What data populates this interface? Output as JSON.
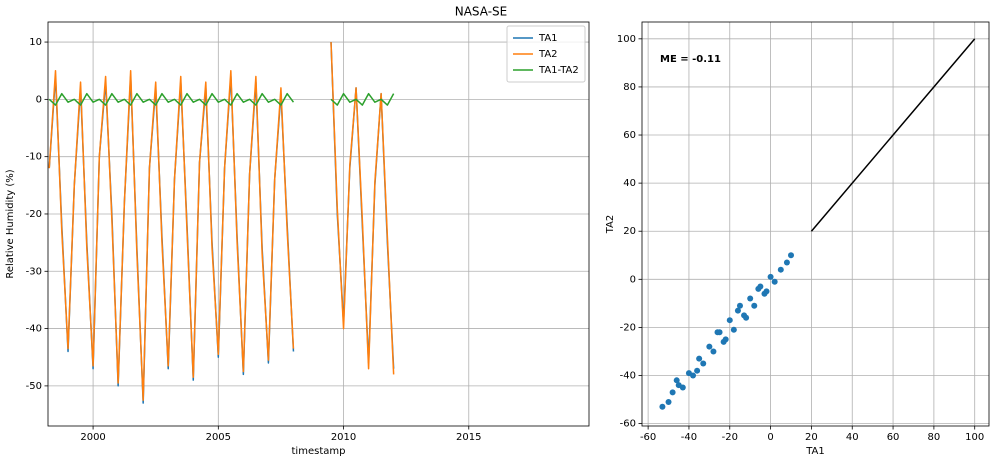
{
  "title": "NASA-SE",
  "chart_data": [
    {
      "type": "line",
      "xlabel": "timestamp",
      "ylabel": "Relative Humidity (%)",
      "xlim": [
        1998.2,
        2019.8
      ],
      "xticks": [
        2000,
        2005,
        2010,
        2015
      ],
      "ylim": [
        -57,
        13.5
      ],
      "yticks": [
        -50,
        -40,
        -30,
        -20,
        -10,
        0,
        10
      ],
      "grid": true,
      "legend": "upper right",
      "x": [
        1998.25,
        1998.5,
        1998.75,
        1999,
        1999.25,
        1999.5,
        1999.75,
        2000,
        2000.25,
        2000.5,
        2000.75,
        2001,
        2001.25,
        2001.5,
        2001.75,
        2002,
        2002.25,
        2002.5,
        2002.75,
        2003,
        2003.25,
        2003.5,
        2003.75,
        2004,
        2004.25,
        2004.5,
        2004.75,
        2005,
        2005.25,
        2005.5,
        2005.75,
        2006,
        2006.25,
        2006.5,
        2006.75,
        2007,
        2007.25,
        2007.5,
        2007.75,
        2008,
        2008.75,
        2009.5,
        2009.75,
        2010,
        2010.25,
        2010.5,
        2010.75,
        2011,
        2011.25,
        2011.5,
        2011.75,
        2012
      ],
      "series": [
        {
          "name": "TA1",
          "color": "#1f77b4",
          "values": [
            -12,
            4,
            -22,
            -44,
            -15,
            2,
            -25,
            -47,
            -10,
            3,
            -20,
            -50,
            -18,
            4,
            -26,
            -53,
            -12,
            2,
            -24,
            -47,
            -14,
            3,
            -22,
            -49,
            -11,
            2,
            -25,
            -45,
            -12,
            4,
            -24,
            -48,
            -13,
            3,
            -26,
            -46,
            -14,
            1,
            -22,
            -44,
            null,
            10,
            -20,
            -39,
            -12,
            2,
            -22,
            -46,
            -15,
            1,
            -25,
            -47
          ]
        },
        {
          "name": "TA2",
          "color": "#ff7f0e",
          "values": [
            -12,
            5,
            -23,
            -43.5,
            -15,
            3,
            -26,
            -46.5,
            -10,
            4,
            -21,
            -49.5,
            -18,
            5,
            -27,
            -52.5,
            -12,
            3,
            -25,
            -46.5,
            -14,
            4,
            -23,
            -48.5,
            -11,
            3,
            -26,
            -44.5,
            -12,
            5,
            -25,
            -47.5,
            -13,
            4,
            -27,
            -45.5,
            -14,
            2,
            -23,
            -43.5,
            null,
            10,
            -19,
            -40,
            -11.5,
            2,
            -21,
            -47,
            -14.5,
            1,
            -24,
            -48
          ]
        },
        {
          "name": "TA1-TA2",
          "color": "#2ca02c",
          "values": [
            0,
            -1,
            1,
            -0.5,
            0,
            -1,
            1,
            -0.5,
            0,
            -1,
            1,
            -0.5,
            0,
            -1,
            1,
            -0.5,
            0,
            -1,
            1,
            -0.5,
            0,
            -1,
            1,
            -0.5,
            0,
            -1,
            1,
            -0.5,
            0,
            -1,
            1,
            -0.5,
            0,
            -1,
            1,
            -0.5,
            0,
            -1,
            1,
            -0.5,
            null,
            0,
            -1,
            1,
            -0.5,
            0,
            -1,
            1,
            -0.5,
            0,
            -1,
            1
          ]
        }
      ]
    },
    {
      "type": "scatter",
      "xlabel": "TA1",
      "ylabel": "TA2",
      "annotation": "ME = -0.11",
      "xlim": [
        -63,
        107
      ],
      "xticks": [
        -60,
        -40,
        -20,
        0,
        20,
        40,
        60,
        80,
        100
      ],
      "ylim": [
        -61,
        107
      ],
      "yticks": [
        -60,
        -40,
        -20,
        0,
        20,
        40,
        60,
        80,
        100
      ],
      "grid": true,
      "color": "#1f77b4",
      "x": [
        -53,
        -50,
        -48,
        -45,
        -43,
        -40,
        -38,
        -35,
        -33,
        -30,
        -28,
        -25,
        -23,
        -20,
        -18,
        -15,
        -13,
        -10,
        -8,
        -5,
        -3,
        0,
        2,
        5,
        8,
        10,
        -46,
        -36,
        -26,
        -22,
        -16,
        -12,
        -6,
        -2
      ],
      "values": [
        -53,
        -51,
        -47,
        -44,
        -45,
        -39,
        -40,
        -33,
        -35,
        -28,
        -30,
        -22,
        -26,
        -17,
        -21,
        -11,
        -15,
        -8,
        -11,
        -3,
        -6,
        1,
        -1,
        4,
        7,
        10,
        -42,
        -38,
        -22,
        -25,
        -13,
        -16,
        -4,
        -5
      ],
      "reference_line": {
        "color": "#000000",
        "x": [
          20,
          100
        ],
        "y": [
          20,
          100
        ]
      }
    }
  ]
}
